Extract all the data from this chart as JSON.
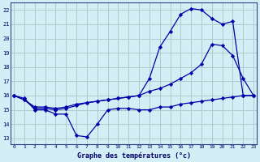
{
  "title": "Graphe des températures (°c)",
  "bg_color": "#d4eef5",
  "grid_color": "#aacccc",
  "line_color": "#0000aa",
  "x_ticks": [
    0,
    1,
    2,
    3,
    4,
    5,
    6,
    7,
    8,
    9,
    10,
    11,
    12,
    13,
    14,
    15,
    16,
    17,
    18,
    19,
    20,
    21,
    22,
    23
  ],
  "y_ticks": [
    13,
    14,
    15,
    16,
    17,
    18,
    19,
    20,
    21,
    22
  ],
  "xlim": [
    -0.3,
    23.3
  ],
  "ylim": [
    12.6,
    22.5
  ],
  "lineA_x": [
    0,
    1,
    2,
    3,
    4,
    5,
    6,
    7,
    8,
    9,
    10,
    11,
    12,
    13,
    14,
    15,
    16,
    17,
    18,
    19,
    20,
    21,
    22,
    23
  ],
  "lineA_y": [
    16.0,
    15.8,
    15.0,
    15.0,
    14.7,
    14.7,
    13.2,
    13.1,
    14.0,
    15.0,
    15.1,
    15.1,
    15.0,
    15.0,
    15.2,
    15.2,
    15.4,
    15.5,
    15.6,
    15.7,
    15.8,
    15.9,
    16.0,
    16.0
  ],
  "lineB_x": [
    0,
    1,
    2,
    3,
    4,
    5,
    6,
    7,
    8,
    9,
    10,
    11,
    12,
    13,
    14,
    15,
    16,
    17,
    18,
    19,
    20,
    21,
    22,
    23
  ],
  "lineB_y": [
    16.0,
    15.7,
    15.2,
    15.2,
    15.1,
    15.2,
    15.4,
    15.5,
    15.6,
    15.7,
    15.8,
    15.9,
    16.0,
    16.3,
    16.5,
    16.8,
    17.2,
    17.6,
    18.2,
    19.6,
    19.5,
    18.8,
    17.2,
    16.0
  ],
  "lineC_x": [
    0,
    1,
    2,
    3,
    4,
    5,
    6,
    7,
    8,
    9,
    10,
    11,
    12,
    13,
    14,
    15,
    16,
    17,
    18,
    19,
    20,
    21,
    22,
    23
  ],
  "lineC_y": [
    16.0,
    15.7,
    15.1,
    15.1,
    15.0,
    15.1,
    15.3,
    15.5,
    15.6,
    15.7,
    15.8,
    15.9,
    16.0,
    17.2,
    19.4,
    20.5,
    21.7,
    22.1,
    22.0,
    21.4,
    21.0,
    21.2,
    16.0,
    16.0
  ]
}
